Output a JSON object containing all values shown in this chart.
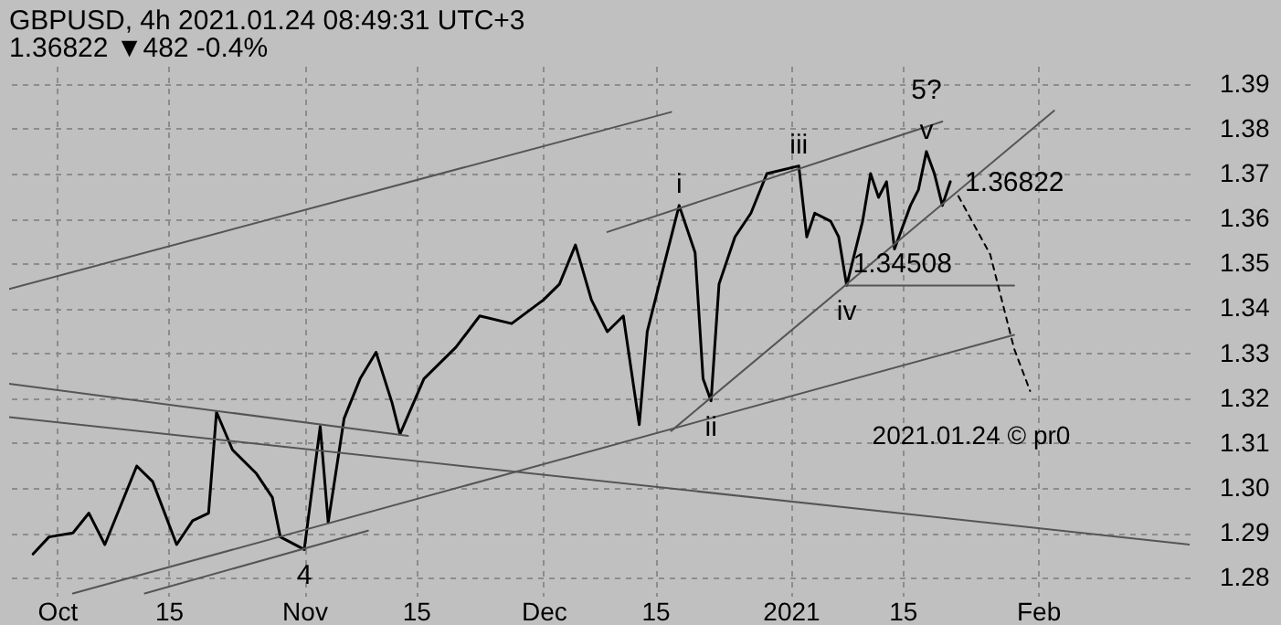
{
  "chart_data": {
    "type": "line",
    "title": "GBPUSD, 4h 2021.01.24 08:49:31 UTC+3",
    "subtitle": "1.36822 ▼482 -0.4%",
    "xlim": [
      "2020-09-25",
      "2021-02-20"
    ],
    "xticks": [
      {
        "value": "2020-10-01",
        "label": "Oct"
      },
      {
        "value": "2020-10-15",
        "label": "15"
      },
      {
        "value": "2020-11-01",
        "label": "Nov"
      },
      {
        "value": "2020-11-15",
        "label": "15"
      },
      {
        "value": "2020-12-01",
        "label": "Dec"
      },
      {
        "value": "2020-12-15",
        "label": "15"
      },
      {
        "value": "2021-01-01",
        "label": "2021"
      },
      {
        "value": "2021-01-15",
        "label": "15"
      },
      {
        "value": "2021-02-01",
        "label": "Feb"
      }
    ],
    "ylim": [
      1.276,
      1.394
    ],
    "yticks": [
      1.28,
      1.29,
      {
        "value": 1.3,
        "label": "1.30"
      },
      1.31,
      1.32,
      1.33,
      1.34,
      1.35,
      1.36,
      1.37,
      1.38,
      1.39
    ],
    "grid": true,
    "series": [
      {
        "color": "#000000",
        "x": [
          "2020-09-28",
          "2020-09-30",
          "2020-10-03",
          "2020-10-05",
          "2020-10-07",
          "2020-10-11",
          "2020-10-13",
          "2020-10-16",
          "2020-10-18",
          "2020-10-20",
          "2020-10-21",
          "2020-10-23",
          "2020-10-26",
          "2020-10-28",
          "2020-10-29",
          "2020-11-01",
          "2020-11-03",
          "2020-11-04",
          "2020-11-06",
          "2020-11-08",
          "2020-11-10",
          "2020-11-12",
          "2020-11-13",
          "2020-11-16",
          "2020-11-20",
          "2020-11-23",
          "2020-11-27",
          "2020-12-01",
          "2020-12-03",
          "2020-12-05",
          "2020-12-07",
          "2020-12-09",
          "2020-12-11",
          "2020-12-13",
          "2020-12-14",
          "2020-12-16",
          "2020-12-18",
          "2020-12-20",
          "2020-12-21",
          "2020-12-22",
          "2020-12-23",
          "2020-12-25",
          "2020-12-27",
          "2020-12-29",
          "2021-01-02",
          "2021-01-03",
          "2021-01-04",
          "2021-01-06",
          "2021-01-07",
          "2021-01-08",
          "2021-01-10",
          "2021-01-11",
          "2021-01-12",
          "2021-01-13",
          "2021-01-14",
          "2021-01-16",
          "2021-01-17",
          "2021-01-18",
          "2021-01-19",
          "2021-01-20",
          "2021-01-21"
        ],
        "values": [
          1.2853,
          1.2891,
          1.29,
          1.2944,
          1.2874,
          1.3049,
          1.3014,
          1.2874,
          1.2927,
          1.2944,
          1.3169,
          1.3085,
          1.3032,
          1.2979,
          1.2891,
          1.2863,
          1.3137,
          1.2923,
          1.3155,
          1.3243,
          1.3302,
          1.319,
          1.312,
          1.3243,
          1.3313,
          1.3383,
          1.3366,
          1.3419,
          1.3454,
          1.3541,
          1.3419,
          1.3348,
          1.3383,
          1.3141,
          1.3348,
          1.3489,
          1.3629,
          1.3524,
          1.3243,
          1.3194,
          1.3454,
          1.3559,
          1.3612,
          1.37,
          1.3717,
          1.3559,
          1.3612,
          1.3594,
          1.3559,
          1.3451,
          1.3594,
          1.37,
          1.3647,
          1.3682,
          1.3532,
          1.3629,
          1.3664,
          1.3749,
          1.37,
          1.3629,
          1.3682
        ]
      },
      {
        "color": "#555555",
        "x": [
          "2020-09-25",
          "2020-12-17"
        ],
        "values": [
          1.3443,
          1.3837
        ]
      },
      {
        "color": "#555555",
        "x": [
          "2020-12-09",
          "2021-01-20"
        ],
        "values": [
          1.357,
          1.3816
        ]
      },
      {
        "color": "#555555",
        "x": [
          "2020-12-17",
          "2021-02-03"
        ],
        "values": [
          1.3127,
          1.384
        ]
      },
      {
        "color": "#555555",
        "x": [
          "2020-10-03",
          "2021-01-29"
        ],
        "values": [
          1.2765,
          1.3341
        ]
      },
      {
        "color": "#555555",
        "x": [
          "2020-10-12",
          "2020-11-09"
        ],
        "values": [
          1.2765,
          1.2905
        ]
      },
      {
        "color": "#555555",
        "x": [
          "2020-09-25",
          "2020-11-14"
        ],
        "values": [
          1.3232,
          1.3116
        ]
      },
      {
        "color": "#555555",
        "x": [
          "2020-09-25",
          "2021-02-20"
        ],
        "values": [
          1.3158,
          1.2874
        ]
      },
      {
        "color": "#555555",
        "x": [
          "2021-01-08",
          "2021-01-29"
        ],
        "values": [
          1.34508,
          1.34508
        ]
      },
      {
        "color": "#000000",
        "line_style": "dashed",
        "x": [
          "2021-01-22",
          "2021-01-26",
          "2021-01-29",
          "2021-01-31"
        ],
        "values": [
          1.365,
          1.352,
          1.331,
          1.3216
        ]
      }
    ],
    "annotations": [
      {
        "text": "i",
        "x": "2020-12-18",
        "y": 1.3629
      },
      {
        "text": "ii",
        "x": "2020-12-22",
        "y": 1.3194
      },
      {
        "text": "iii",
        "x": "2021-01-02",
        "y": 1.3717
      },
      {
        "text": "iv",
        "x": "2021-01-08",
        "y": 1.3451
      },
      {
        "text": "v",
        "x": "2021-01-18",
        "y": 1.3749
      },
      {
        "text": "5?",
        "x": "2021-01-18",
        "y": 1.3749
      },
      {
        "text": "4",
        "x": "2020-11-01",
        "y": 1.2863
      },
      {
        "text": "1.34508",
        "x": "2021-01-15",
        "y": 1.34508
      },
      {
        "text": "1.36822",
        "x": "2021-01-21",
        "y": 1.3682
      },
      "2021.01.24 © pr0"
    ]
  }
}
